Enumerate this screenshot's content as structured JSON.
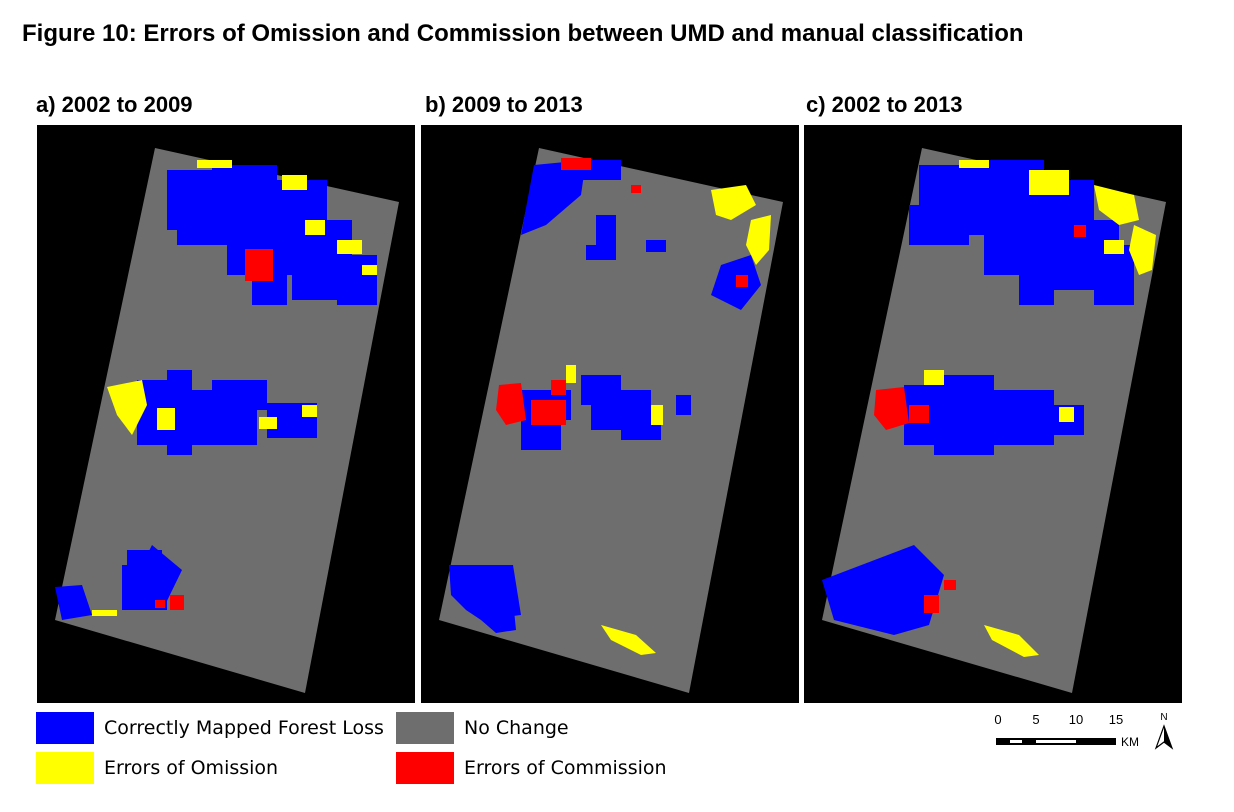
{
  "figure_title": "Figure 10: Errors of Omission and Commission between UMD and manual classification",
  "panels": [
    {
      "label": "a) 2002 to 2009"
    },
    {
      "label": "b) 2009 to 2013"
    },
    {
      "label": "c) 2002 to 2013"
    }
  ],
  "legend": [
    {
      "label": "Correctly Mapped Forest Loss",
      "color": "#0000ff"
    },
    {
      "label": "No Change",
      "color": "#6e6e6e"
    },
    {
      "label": "Errors of Omission",
      "color": "#ffff00"
    },
    {
      "label": "Errors of Commission",
      "color": "#ff0000"
    }
  ],
  "scale_bar": {
    "ticks": [
      "0",
      "5",
      "10",
      "15"
    ],
    "unit": "KM",
    "north_label": "N"
  },
  "colors": {
    "background": "#000000",
    "no_change": "#6e6e6e",
    "forest_loss": "#0000ff",
    "omission": "#ffff00",
    "commission": "#ff0000"
  }
}
